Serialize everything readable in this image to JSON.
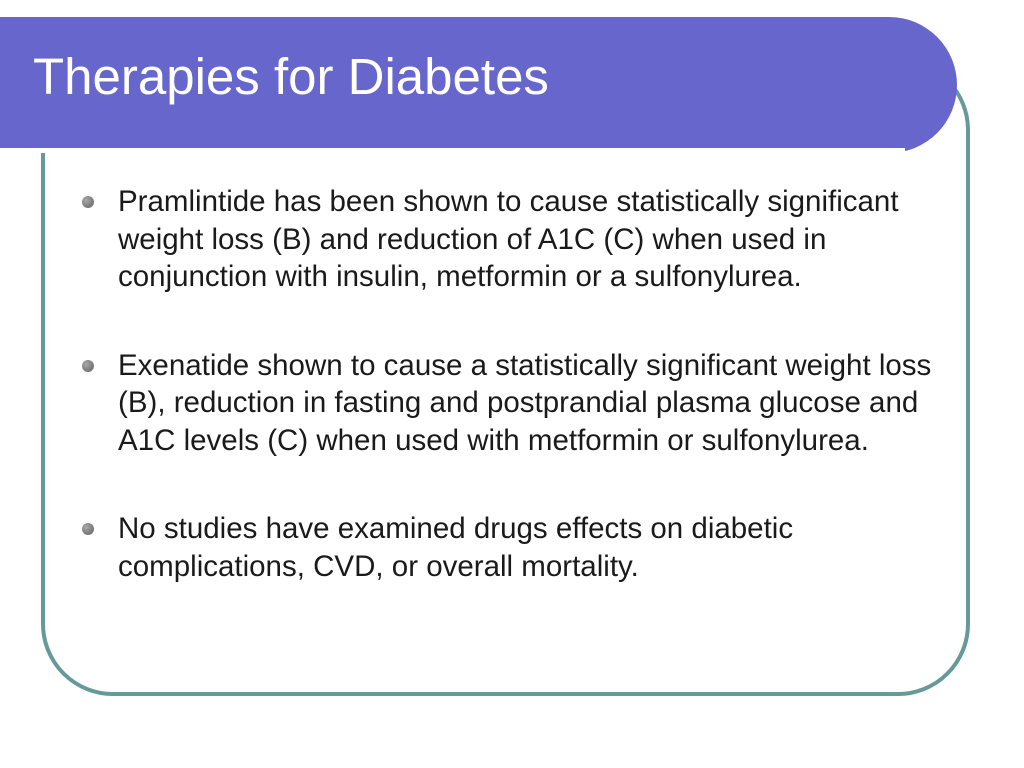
{
  "slide": {
    "title": "Therapies for Diabetes",
    "bullets": [
      "Pramlintide has been shown to cause statistically significant weight loss (B) and reduction of A1C (C) when used in conjunction with insulin, metformin or a sulfonylurea.",
      "Exenatide shown to cause a statistically significant weight loss (B), reduction in fasting and postprandial plasma glucose and A1C levels (C) when used with metformin or sulfonylurea.",
      "No studies have examined drugs effects on diabetic complications, CVD, or overall mortality."
    ]
  },
  "colors": {
    "title_band": "#6666cc",
    "frame_border": "#669999",
    "bullet": "#808080",
    "text": "#1a1a1a"
  }
}
